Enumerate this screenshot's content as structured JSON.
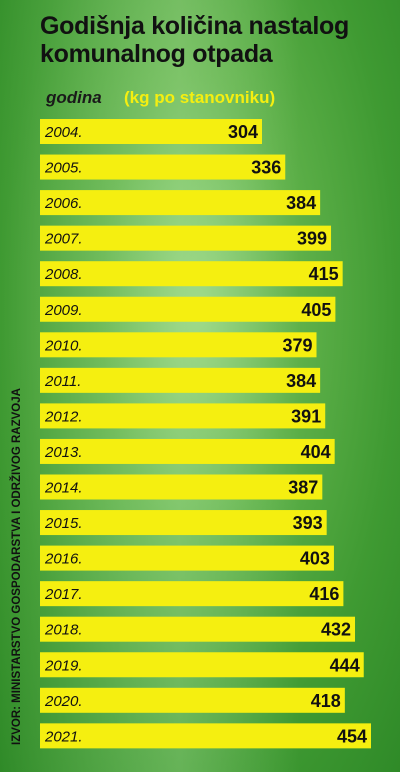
{
  "header": {
    "title_line1": "Godišnja količina nastalog",
    "title_line2": "komunalnog otpada",
    "year_label": "godina",
    "unit_label": "(kg po stanovniku)"
  },
  "source": "IZVOR: MINISTARSTVO GOSPODARSTVA I ODRŽIVOG RAZVOJA",
  "colors": {
    "bar": "#f5ef10",
    "text": "#111111",
    "background": "#4faa3c"
  },
  "chart_data": {
    "type": "bar",
    "orientation": "horizontal",
    "categories": [
      "2004.",
      "2005.",
      "2006.",
      "2007.",
      "2008.",
      "2009.",
      "2010.",
      "2011.",
      "2012.",
      "2013.",
      "2014.",
      "2015.",
      "2016.",
      "2017.",
      "2018.",
      "2019.",
      "2020.",
      "2021."
    ],
    "values": [
      304,
      336,
      384,
      399,
      415,
      405,
      379,
      384,
      391,
      404,
      387,
      393,
      403,
      416,
      432,
      444,
      418,
      454
    ],
    "value_labels": [
      "304",
      "336",
      "384",
      "399",
      "415",
      "405",
      "379",
      "384",
      "391",
      "404",
      "387",
      "393",
      "403",
      "416",
      "432",
      "444",
      "418",
      "454"
    ],
    "title": "Godišnja količina nastalog komunalnog otpada",
    "xlabel": "",
    "ylabel": "",
    "grid": false
  }
}
